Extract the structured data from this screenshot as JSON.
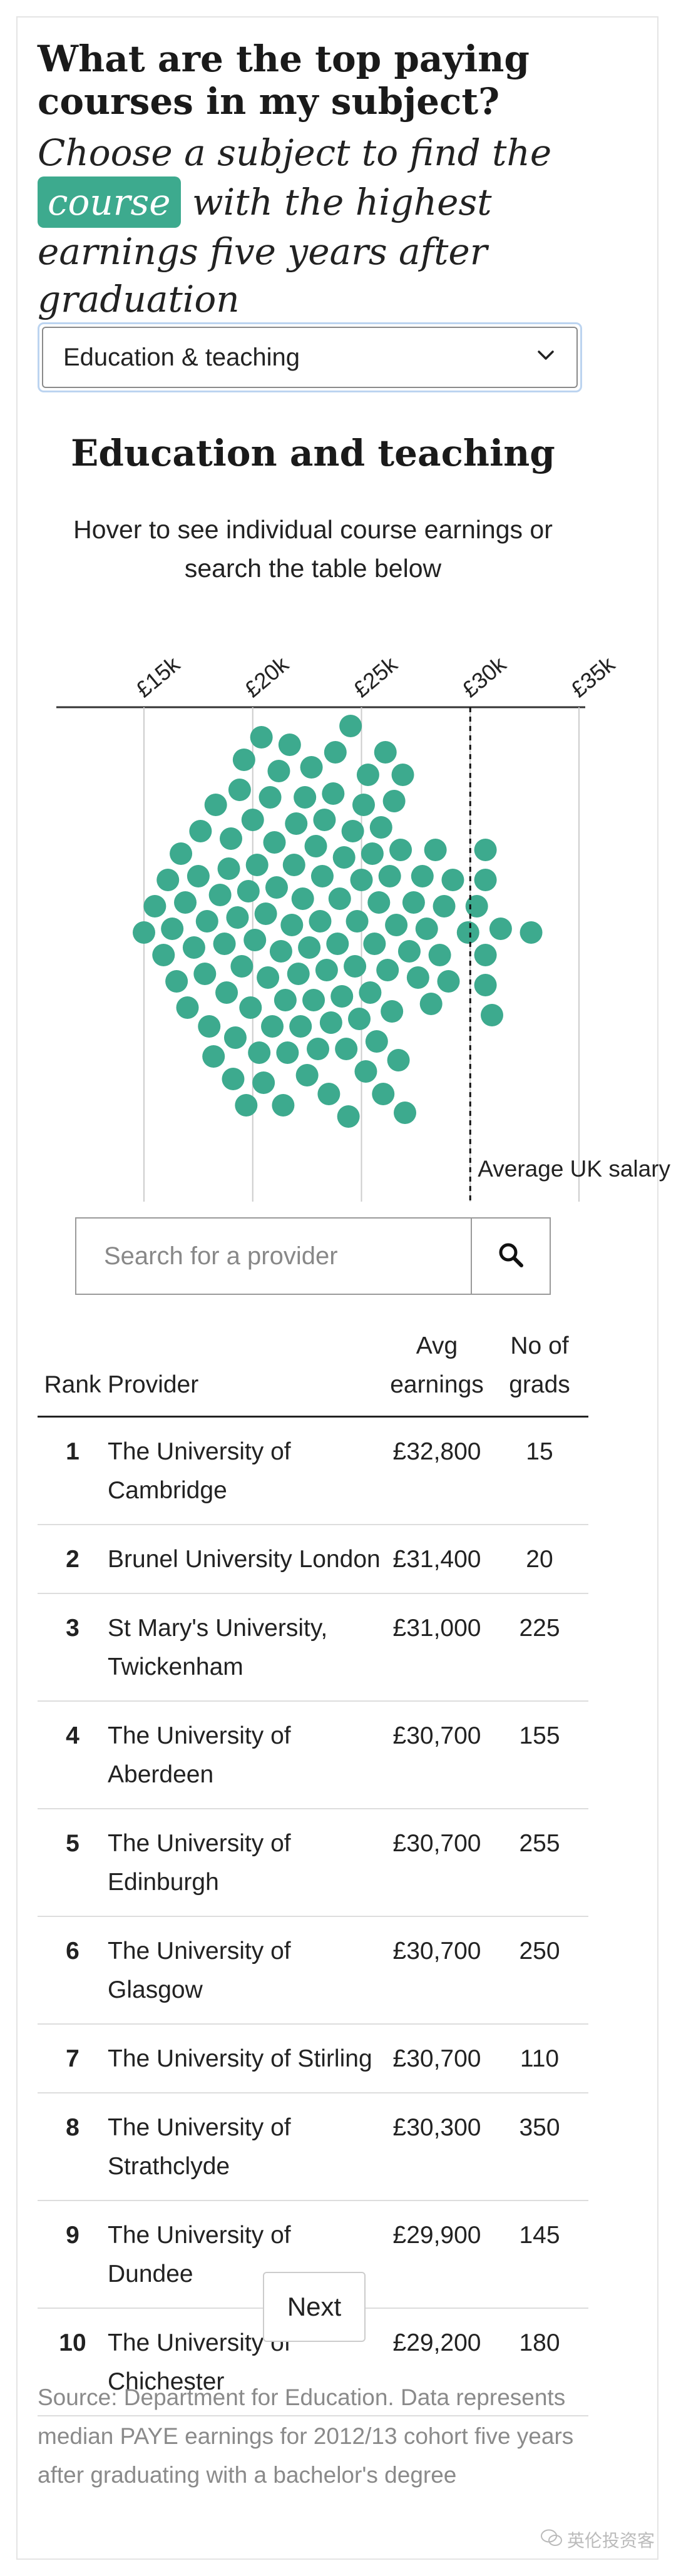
{
  "header": {
    "headline": "What are the top paying courses in my subject?",
    "standfirst_before": "Choose a subject to find the",
    "standfirst_highlight": "course",
    "standfirst_after": "with the highest earnings five years after graduation"
  },
  "subject_select": {
    "value": "Education & teaching"
  },
  "chart": {
    "title": "Education and teaching",
    "hint": "Hover to see individual course earnings or search the table below",
    "average_label": "Average UK salary",
    "colors": {
      "dot": "#3daa8e",
      "grid": "#cccccc",
      "axis": "#333333"
    }
  },
  "chart_data": {
    "type": "scatter",
    "title": "Education and teaching",
    "x_ticks": [
      "£15k",
      "£20k",
      "£25k",
      "£30k",
      "£35k"
    ],
    "x_tick_values": [
      15000,
      20000,
      25000,
      30000,
      35000
    ],
    "average_uk_salary": 30000,
    "series": [
      {
        "values": [
          15000,
          15500,
          15900,
          16100,
          16300,
          16500,
          16700,
          16900,
          17000,
          17300,
          17500,
          17600,
          17800,
          17900,
          18000,
          18200,
          18300,
          18500,
          18700,
          18800,
          18900,
          19000,
          19100,
          19200,
          19300,
          19400,
          19500,
          19600,
          19700,
          19800,
          19900,
          20000,
          20100,
          20200,
          20300,
          20400,
          20500,
          20600,
          20700,
          20800,
          20900,
          21000,
          21100,
          21200,
          21300,
          21400,
          21500,
          21600,
          21700,
          21800,
          21900,
          22000,
          22100,
          22200,
          22300,
          22400,
          22500,
          22600,
          22700,
          22800,
          22900,
          23000,
          23100,
          23200,
          23300,
          23400,
          23500,
          23600,
          23700,
          23800,
          23900,
          24000,
          24100,
          24200,
          24300,
          24400,
          24500,
          24600,
          24700,
          24800,
          24900,
          25000,
          25100,
          25200,
          25300,
          25400,
          25500,
          25600,
          25700,
          25800,
          25900,
          26000,
          26100,
          26200,
          26300,
          26400,
          26500,
          26600,
          26700,
          26800,
          26900,
          27000,
          27200,
          27400,
          27600,
          27800,
          28000,
          28200,
          28400,
          28600,
          28800,
          29000,
          29200,
          29900,
          30300,
          30700,
          30700,
          30700,
          30700,
          31000,
          31400,
          32800
        ]
      }
    ]
  },
  "search": {
    "placeholder": "Search for a provider"
  },
  "table": {
    "headers": {
      "rank": "Rank",
      "provider": "Provider",
      "earnings": "Avg earnings",
      "grads": "No of grads"
    },
    "rows": [
      {
        "rank": "1",
        "provider": "The University of Cambridge",
        "earnings": "£32,800",
        "grads": "15"
      },
      {
        "rank": "2",
        "provider": "Brunel University London",
        "earnings": "£31,400",
        "grads": "20"
      },
      {
        "rank": "3",
        "provider": "St Mary's University, Twickenham",
        "earnings": "£31,000",
        "grads": "225"
      },
      {
        "rank": "4",
        "provider": "The University of Aberdeen",
        "earnings": "£30,700",
        "grads": "155"
      },
      {
        "rank": "5",
        "provider": "The University of Edinburgh",
        "earnings": "£30,700",
        "grads": "255"
      },
      {
        "rank": "6",
        "provider": "The University of Glasgow",
        "earnings": "£30,700",
        "grads": "250"
      },
      {
        "rank": "7",
        "provider": "The University of Stirling",
        "earnings": "£30,700",
        "grads": "110"
      },
      {
        "rank": "8",
        "provider": "The University of Strathclyde",
        "earnings": "£30,300",
        "grads": "350"
      },
      {
        "rank": "9",
        "provider": "The University of Dundee",
        "earnings": "£29,900",
        "grads": "145"
      },
      {
        "rank": "10",
        "provider": "The University of Chichester",
        "earnings": "£29,200",
        "grads": "180"
      }
    ]
  },
  "pagination": {
    "next_label": "Next"
  },
  "source_note": "Source: Department for Education. Data represents median PAYE earnings for 2012/13 cohort five years after graduating with a bachelor's degree",
  "watermark": "英伦投资客"
}
